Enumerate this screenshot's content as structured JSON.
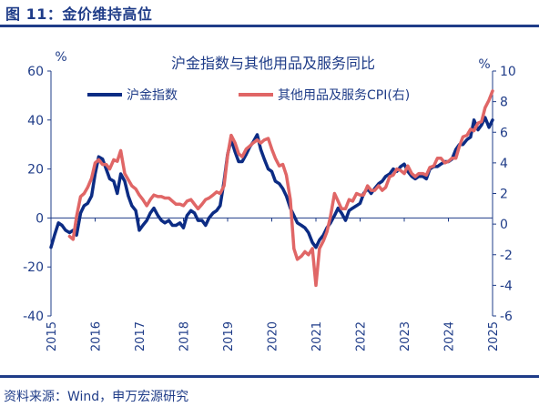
{
  "figure": {
    "title": "图 11：金价维持高位",
    "source": "资料来源：Wind，申万宏源研究"
  },
  "chart_data": {
    "type": "line",
    "title": "沪金指数与其他用品及服务同比",
    "left_unit": "%",
    "right_unit": "%",
    "left_axis": {
      "ylim": [
        -40,
        60
      ],
      "ticks": [
        60,
        40,
        20,
        0,
        -20,
        -40
      ]
    },
    "right_axis": {
      "ylim": [
        -6,
        10
      ],
      "ticks": [
        10,
        8,
        6,
        4,
        2,
        0,
        -2,
        -4,
        -6
      ]
    },
    "x_ticks": [
      "2015",
      "2016",
      "2017",
      "2018",
      "2019",
      "2020",
      "2021",
      "2022",
      "2023",
      "2024",
      "2025"
    ],
    "xlim": [
      2015.0,
      2025.0
    ],
    "legend_position": "top",
    "series": [
      {
        "name": "沪金指数",
        "axis": "left",
        "color": "#0c2c84",
        "points": [
          [
            2015.0,
            -12
          ],
          [
            2015.08,
            -7
          ],
          [
            2015.17,
            -2
          ],
          [
            2015.25,
            -3
          ],
          [
            2015.33,
            -5
          ],
          [
            2015.42,
            -6
          ],
          [
            2015.5,
            -5
          ],
          [
            2015.58,
            -7
          ],
          [
            2015.67,
            2
          ],
          [
            2015.75,
            5
          ],
          [
            2015.83,
            6
          ],
          [
            2015.92,
            9
          ],
          [
            2016.0,
            18
          ],
          [
            2016.08,
            25
          ],
          [
            2016.17,
            24
          ],
          [
            2016.25,
            20
          ],
          [
            2016.33,
            16
          ],
          [
            2016.42,
            15
          ],
          [
            2016.5,
            10
          ],
          [
            2016.58,
            18
          ],
          [
            2016.67,
            15
          ],
          [
            2016.75,
            9
          ],
          [
            2016.83,
            5
          ],
          [
            2016.92,
            3
          ],
          [
            2017.0,
            -5
          ],
          [
            2017.08,
            -3
          ],
          [
            2017.17,
            -1
          ],
          [
            2017.25,
            2
          ],
          [
            2017.33,
            4
          ],
          [
            2017.42,
            1
          ],
          [
            2017.5,
            -1
          ],
          [
            2017.58,
            -2
          ],
          [
            2017.67,
            -1
          ],
          [
            2017.75,
            -3
          ],
          [
            2017.83,
            -3
          ],
          [
            2017.92,
            -2
          ],
          [
            2018.0,
            -4
          ],
          [
            2018.08,
            1
          ],
          [
            2018.17,
            3
          ],
          [
            2018.25,
            2
          ],
          [
            2018.33,
            -1
          ],
          [
            2018.42,
            -1
          ],
          [
            2018.5,
            -3
          ],
          [
            2018.58,
            0
          ],
          [
            2018.67,
            2
          ],
          [
            2018.75,
            3
          ],
          [
            2018.83,
            5
          ],
          [
            2018.92,
            15
          ],
          [
            2019.0,
            26
          ],
          [
            2019.08,
            32
          ],
          [
            2019.17,
            27
          ],
          [
            2019.25,
            23
          ],
          [
            2019.33,
            23
          ],
          [
            2019.42,
            26
          ],
          [
            2019.5,
            29
          ],
          [
            2019.58,
            31
          ],
          [
            2019.67,
            34
          ],
          [
            2019.75,
            28
          ],
          [
            2019.83,
            24
          ],
          [
            2019.92,
            20
          ],
          [
            2020.0,
            19
          ],
          [
            2020.08,
            15
          ],
          [
            2020.17,
            14
          ],
          [
            2020.25,
            12
          ],
          [
            2020.33,
            9
          ],
          [
            2020.42,
            4
          ],
          [
            2020.5,
            1
          ],
          [
            2020.58,
            -2
          ],
          [
            2020.67,
            -3
          ],
          [
            2020.75,
            -4
          ],
          [
            2020.83,
            -6
          ],
          [
            2020.92,
            -10
          ],
          [
            2021.0,
            -12
          ],
          [
            2021.08,
            -9
          ],
          [
            2021.17,
            -7
          ],
          [
            2021.25,
            -4
          ],
          [
            2021.33,
            -2
          ],
          [
            2021.42,
            1
          ],
          [
            2021.5,
            4
          ],
          [
            2021.58,
            2
          ],
          [
            2021.67,
            -1
          ],
          [
            2021.75,
            3
          ],
          [
            2021.83,
            4
          ],
          [
            2021.92,
            5
          ],
          [
            2022.0,
            6
          ],
          [
            2022.08,
            10
          ],
          [
            2022.17,
            12
          ],
          [
            2022.25,
            10
          ],
          [
            2022.33,
            12
          ],
          [
            2022.42,
            14
          ],
          [
            2022.5,
            15
          ],
          [
            2022.58,
            17
          ],
          [
            2022.67,
            18
          ],
          [
            2022.75,
            20
          ],
          [
            2022.83,
            19
          ],
          [
            2022.92,
            21
          ],
          [
            2023.0,
            22
          ],
          [
            2023.08,
            19
          ],
          [
            2023.17,
            17
          ],
          [
            2023.25,
            16
          ],
          [
            2023.33,
            17
          ],
          [
            2023.42,
            17
          ],
          [
            2023.5,
            16
          ],
          [
            2023.58,
            20
          ],
          [
            2023.67,
            21
          ],
          [
            2023.75,
            21
          ],
          [
            2023.83,
            22
          ],
          [
            2023.92,
            23
          ],
          [
            2024.0,
            23
          ],
          [
            2024.08,
            24
          ],
          [
            2024.17,
            28
          ],
          [
            2024.25,
            30
          ],
          [
            2024.33,
            30
          ],
          [
            2024.42,
            32
          ],
          [
            2024.5,
            33
          ],
          [
            2024.58,
            40
          ],
          [
            2024.67,
            36
          ],
          [
            2024.75,
            38
          ],
          [
            2024.83,
            41
          ],
          [
            2024.92,
            37
          ],
          [
            2025.0,
            40
          ]
        ]
      },
      {
        "name": "其他用品及服务CPI(右)",
        "axis": "right",
        "color": "#e06666",
        "points": [
          [
            2015.42,
            -0.8
          ],
          [
            2015.5,
            -1.0
          ],
          [
            2015.58,
            0.5
          ],
          [
            2015.67,
            1.8
          ],
          [
            2015.75,
            2.0
          ],
          [
            2015.83,
            2.4
          ],
          [
            2015.92,
            3.0
          ],
          [
            2016.0,
            4.0
          ],
          [
            2016.08,
            4.2
          ],
          [
            2016.17,
            3.9
          ],
          [
            2016.25,
            3.9
          ],
          [
            2016.33,
            3.6
          ],
          [
            2016.42,
            4.2
          ],
          [
            2016.5,
            4.1
          ],
          [
            2016.58,
            4.8
          ],
          [
            2016.67,
            3.3
          ],
          [
            2016.75,
            2.9
          ],
          [
            2016.83,
            2.5
          ],
          [
            2016.92,
            2.3
          ],
          [
            2017.0,
            1.9
          ],
          [
            2017.08,
            1.6
          ],
          [
            2017.17,
            1.2
          ],
          [
            2017.25,
            1.6
          ],
          [
            2017.33,
            1.9
          ],
          [
            2017.42,
            1.8
          ],
          [
            2017.5,
            1.8
          ],
          [
            2017.58,
            1.7
          ],
          [
            2017.67,
            1.7
          ],
          [
            2017.75,
            1.5
          ],
          [
            2017.83,
            1.3
          ],
          [
            2017.92,
            1.3
          ],
          [
            2018.0,
            1.2
          ],
          [
            2018.08,
            1.5
          ],
          [
            2018.17,
            1.6
          ],
          [
            2018.25,
            1.3
          ],
          [
            2018.33,
            1.0
          ],
          [
            2018.42,
            1.3
          ],
          [
            2018.5,
            1.6
          ],
          [
            2018.58,
            1.7
          ],
          [
            2018.67,
            1.9
          ],
          [
            2018.75,
            2.1
          ],
          [
            2018.83,
            2.0
          ],
          [
            2018.92,
            2.5
          ],
          [
            2019.0,
            4.5
          ],
          [
            2019.08,
            5.8
          ],
          [
            2019.17,
            5.3
          ],
          [
            2019.25,
            4.6
          ],
          [
            2019.33,
            4.4
          ],
          [
            2019.42,
            4.9
          ],
          [
            2019.5,
            5.1
          ],
          [
            2019.58,
            5.3
          ],
          [
            2019.67,
            5.5
          ],
          [
            2019.75,
            5.3
          ],
          [
            2019.83,
            5.5
          ],
          [
            2019.92,
            5.6
          ],
          [
            2020.0,
            4.9
          ],
          [
            2020.08,
            4.3
          ],
          [
            2020.17,
            3.8
          ],
          [
            2020.25,
            3.9
          ],
          [
            2020.33,
            3.2
          ],
          [
            2020.42,
            1.6
          ],
          [
            2020.5,
            -1.6
          ],
          [
            2020.58,
            -2.3
          ],
          [
            2020.67,
            -2.1
          ],
          [
            2020.75,
            -1.8
          ],
          [
            2020.83,
            -2.0
          ],
          [
            2020.92,
            -1.6
          ],
          [
            2021.0,
            -4.0
          ],
          [
            2021.08,
            -1.6
          ],
          [
            2021.17,
            -1.1
          ],
          [
            2021.25,
            -0.5
          ],
          [
            2021.33,
            0.5
          ],
          [
            2021.42,
            2.0
          ],
          [
            2021.5,
            1.5
          ],
          [
            2021.58,
            1.0
          ],
          [
            2021.67,
            1.0
          ],
          [
            2021.75,
            1.6
          ],
          [
            2021.83,
            1.5
          ],
          [
            2021.92,
            2.0
          ],
          [
            2022.0,
            1.9
          ],
          [
            2022.08,
            1.9
          ],
          [
            2022.17,
            2.5
          ],
          [
            2022.25,
            2.2
          ],
          [
            2022.33,
            2.2
          ],
          [
            2022.42,
            2.5
          ],
          [
            2022.5,
            2.2
          ],
          [
            2022.58,
            2.4
          ],
          [
            2022.67,
            3.1
          ],
          [
            2022.75,
            3.2
          ],
          [
            2022.83,
            3.6
          ],
          [
            2022.92,
            3.5
          ],
          [
            2023.0,
            3.3
          ],
          [
            2023.08,
            3.8
          ],
          [
            2023.17,
            3.3
          ],
          [
            2023.25,
            3.1
          ],
          [
            2023.33,
            3.3
          ],
          [
            2023.42,
            3.3
          ],
          [
            2023.5,
            3.2
          ],
          [
            2023.58,
            3.7
          ],
          [
            2023.67,
            3.8
          ],
          [
            2023.75,
            4.3
          ],
          [
            2023.83,
            4.3
          ],
          [
            2023.92,
            4.0
          ],
          [
            2024.0,
            4.1
          ],
          [
            2024.08,
            4.3
          ],
          [
            2024.17,
            4.3
          ],
          [
            2024.25,
            5.1
          ],
          [
            2024.33,
            5.7
          ],
          [
            2024.42,
            5.8
          ],
          [
            2024.5,
            6.2
          ],
          [
            2024.58,
            6.1
          ],
          [
            2024.67,
            6.6
          ],
          [
            2024.75,
            6.7
          ],
          [
            2024.83,
            7.6
          ],
          [
            2024.92,
            8.1
          ],
          [
            2025.0,
            8.7
          ]
        ]
      }
    ]
  }
}
